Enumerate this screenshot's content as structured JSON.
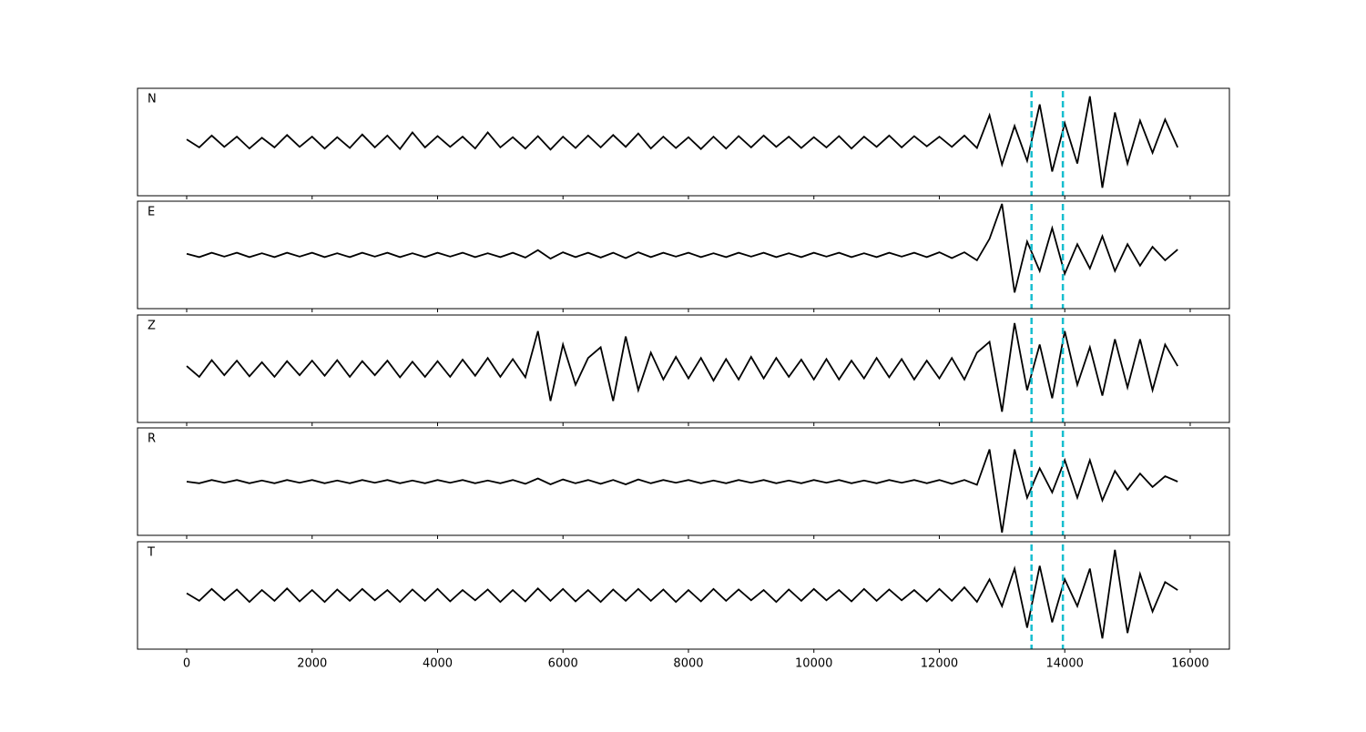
{
  "chart_data": {
    "type": "line",
    "x": [
      0,
      200,
      400,
      600,
      800,
      1000,
      1200,
      1400,
      1600,
      1800,
      2000,
      2200,
      2400,
      2600,
      2800,
      3000,
      3200,
      3400,
      3600,
      3800,
      4000,
      4200,
      4400,
      4600,
      4800,
      5000,
      5200,
      5400,
      5600,
      5800,
      6000,
      6200,
      6400,
      6600,
      6800,
      7000,
      7200,
      7400,
      7600,
      7800,
      8000,
      8200,
      8400,
      8600,
      8800,
      9000,
      9200,
      9400,
      9600,
      9800,
      10000,
      10200,
      10400,
      10600,
      10800,
      11000,
      11200,
      11400,
      11600,
      11800,
      12000,
      12200,
      12400,
      12600,
      12800,
      13000,
      13200,
      13400,
      13600,
      13800,
      14000,
      14200,
      14400,
      14600,
      14800,
      15000,
      15200,
      15400,
      15600,
      15800
    ],
    "series": [
      {
        "name": "N",
        "color": "#000000",
        "values": [
          0.05,
          -0.1,
          0.12,
          -0.09,
          0.1,
          -0.12,
          0.08,
          -0.1,
          0.13,
          -0.09,
          0.1,
          -0.12,
          0.09,
          -0.11,
          0.14,
          -0.1,
          0.12,
          -0.13,
          0.18,
          -0.1,
          0.11,
          -0.09,
          0.1,
          -0.12,
          0.18,
          -0.1,
          0.09,
          -0.12,
          0.11,
          -0.14,
          0.1,
          -0.11,
          0.12,
          -0.1,
          0.13,
          -0.09,
          0.16,
          -0.12,
          0.1,
          -0.11,
          0.09,
          -0.13,
          0.1,
          -0.12,
          0.11,
          -0.1,
          0.12,
          -0.09,
          0.1,
          -0.11,
          0.09,
          -0.1,
          0.11,
          -0.12,
          0.1,
          -0.09,
          0.12,
          -0.1,
          0.11,
          -0.08,
          0.1,
          -0.09,
          0.12,
          -0.11,
          0.5,
          -0.42,
          0.3,
          -0.35,
          0.7,
          -0.55,
          0.35,
          -0.4,
          0.85,
          -0.85,
          0.55,
          -0.4,
          0.4,
          -0.2,
          0.42,
          -0.1
        ]
      },
      {
        "name": "E",
        "color": "#000000",
        "values": [
          0.02,
          -0.04,
          0.04,
          -0.03,
          0.04,
          -0.04,
          0.03,
          -0.04,
          0.04,
          -0.03,
          0.04,
          -0.04,
          0.03,
          -0.04,
          0.04,
          -0.03,
          0.04,
          -0.04,
          0.03,
          -0.04,
          0.04,
          -0.03,
          0.04,
          -0.04,
          0.03,
          -0.04,
          0.04,
          -0.05,
          0.09,
          -0.07,
          0.05,
          -0.04,
          0.04,
          -0.05,
          0.04,
          -0.06,
          0.05,
          -0.04,
          0.04,
          -0.03,
          0.04,
          -0.04,
          0.03,
          -0.04,
          0.04,
          -0.03,
          0.04,
          -0.04,
          0.03,
          -0.04,
          0.04,
          -0.03,
          0.04,
          -0.04,
          0.03,
          -0.04,
          0.04,
          -0.03,
          0.04,
          -0.04,
          0.05,
          -0.06,
          0.05,
          -0.1,
          0.3,
          0.95,
          -0.7,
          0.25,
          -0.3,
          0.5,
          -0.35,
          0.2,
          -0.25,
          0.35,
          -0.3,
          0.2,
          -0.2,
          0.15,
          -0.1,
          0.1
        ]
      },
      {
        "name": "Z",
        "color": "#000000",
        "values": [
          0.05,
          -0.15,
          0.16,
          -0.12,
          0.15,
          -0.14,
          0.12,
          -0.15,
          0.14,
          -0.12,
          0.15,
          -0.13,
          0.16,
          -0.15,
          0.14,
          -0.12,
          0.15,
          -0.16,
          0.13,
          -0.15,
          0.14,
          -0.15,
          0.17,
          -0.13,
          0.2,
          -0.15,
          0.18,
          -0.16,
          0.7,
          -0.6,
          0.45,
          -0.3,
          0.2,
          0.4,
          -0.6,
          0.6,
          -0.4,
          0.3,
          -0.2,
          0.22,
          -0.18,
          0.2,
          -0.22,
          0.18,
          -0.2,
          0.22,
          -0.18,
          0.2,
          -0.15,
          0.17,
          -0.2,
          0.18,
          -0.2,
          0.15,
          -0.18,
          0.2,
          -0.16,
          0.18,
          -0.2,
          0.15,
          -0.18,
          0.2,
          -0.2,
          0.3,
          0.5,
          -0.8,
          0.85,
          -0.4,
          0.45,
          -0.55,
          0.7,
          -0.3,
          0.4,
          -0.5,
          0.55,
          -0.35,
          0.55,
          -0.4,
          0.45,
          0.05
        ]
      },
      {
        "name": "R",
        "color": "#000000",
        "values": [
          0.0,
          -0.03,
          0.03,
          -0.02,
          0.03,
          -0.03,
          0.02,
          -0.03,
          0.03,
          -0.02,
          0.03,
          -0.03,
          0.02,
          -0.03,
          0.03,
          -0.02,
          0.03,
          -0.03,
          0.02,
          -0.03,
          0.03,
          -0.02,
          0.03,
          -0.03,
          0.02,
          -0.03,
          0.03,
          -0.04,
          0.06,
          -0.05,
          0.04,
          -0.03,
          0.03,
          -0.04,
          0.03,
          -0.05,
          0.04,
          -0.03,
          0.03,
          -0.02,
          0.03,
          -0.03,
          0.02,
          -0.03,
          0.03,
          -0.02,
          0.03,
          -0.03,
          0.02,
          -0.03,
          0.03,
          -0.02,
          0.03,
          -0.03,
          0.02,
          -0.03,
          0.03,
          -0.02,
          0.03,
          -0.03,
          0.03,
          -0.04,
          0.03,
          -0.06,
          0.6,
          -0.95,
          0.6,
          -0.3,
          0.25,
          -0.2,
          0.4,
          -0.3,
          0.4,
          -0.35,
          0.2,
          -0.15,
          0.15,
          -0.1,
          0.1,
          0.0
        ]
      },
      {
        "name": "T",
        "color": "#000000",
        "values": [
          0.04,
          -0.1,
          0.12,
          -0.09,
          0.11,
          -0.12,
          0.1,
          -0.1,
          0.13,
          -0.11,
          0.1,
          -0.12,
          0.11,
          -0.1,
          0.12,
          -0.09,
          0.1,
          -0.12,
          0.11,
          -0.1,
          0.12,
          -0.11,
          0.1,
          -0.09,
          0.11,
          -0.12,
          0.1,
          -0.11,
          0.13,
          -0.1,
          0.12,
          -0.11,
          0.1,
          -0.12,
          0.11,
          -0.1,
          0.12,
          -0.1,
          0.11,
          -0.12,
          0.1,
          -0.11,
          0.12,
          -0.1,
          0.11,
          -0.09,
          0.1,
          -0.12,
          0.11,
          -0.1,
          0.12,
          -0.09,
          0.1,
          -0.11,
          0.12,
          -0.1,
          0.11,
          -0.09,
          0.1,
          -0.11,
          0.12,
          -0.1,
          0.15,
          -0.12,
          0.3,
          -0.2,
          0.5,
          -0.6,
          0.55,
          -0.5,
          0.3,
          -0.2,
          0.5,
          -0.8,
          0.85,
          -0.7,
          0.4,
          -0.3,
          0.25,
          0.1
        ]
      }
    ],
    "vlines": {
      "values": [
        13470,
        13970
      ],
      "color": "#17becf"
    },
    "xlim": [
      -784,
      16625
    ],
    "xticks": [
      0,
      2000,
      4000,
      6000,
      8000,
      10000,
      12000,
      14000,
      16000
    ],
    "ylim": [
      -1,
      1
    ]
  }
}
